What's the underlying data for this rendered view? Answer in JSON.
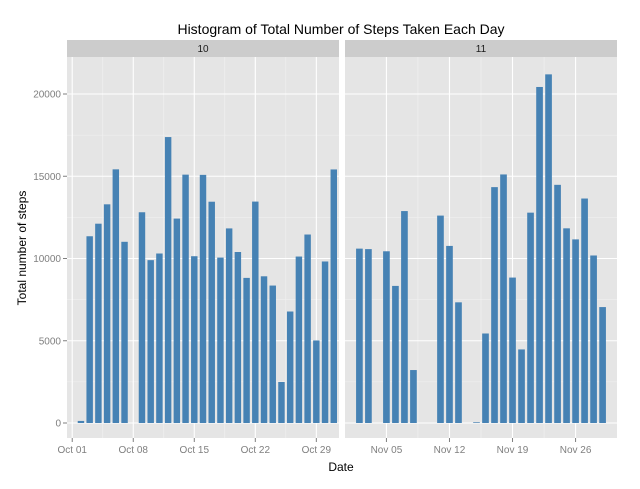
{
  "chart_data": {
    "type": "bar",
    "title": "Histogram of Total Number of Steps Taken Each Day",
    "xlabel": "Date",
    "ylabel": "Total number of steps",
    "ylim": [
      0,
      22000
    ],
    "y_ticks": [
      0,
      5000,
      10000,
      15000,
      20000
    ],
    "y_tick_labels": [
      "0",
      "5000",
      "10000",
      "15000",
      "20000"
    ],
    "color": "#4682b4",
    "grid": true,
    "facets": [
      {
        "strip_label": "10",
        "x_range": [
          0.4,
          31.6
        ],
        "x_ticks": [
          {
            "day": 1,
            "label": "Oct 01"
          },
          {
            "day": 8,
            "label": "Oct 08"
          },
          {
            "day": 15,
            "label": "Oct 15"
          },
          {
            "day": 22,
            "label": "Oct 22"
          },
          {
            "day": 29,
            "label": "Oct 29"
          }
        ],
        "values": [
          0,
          126,
          11352,
          12116,
          13294,
          15420,
          11015,
          0,
          12811,
          9900,
          10304,
          17382,
          12426,
          15098,
          10139,
          15084,
          13452,
          10056,
          11829,
          10395,
          8821,
          13460,
          8918,
          8355,
          2492,
          6778,
          10119,
          11458,
          5018,
          9819,
          15414
        ]
      },
      {
        "strip_label": "11",
        "x_range": [
          0.4,
          30.6
        ],
        "x_ticks": [
          {
            "day": 5,
            "label": "Nov 05"
          },
          {
            "day": 12,
            "label": "Nov 12"
          },
          {
            "day": 19,
            "label": "Nov 19"
          },
          {
            "day": 26,
            "label": "Nov 26"
          }
        ],
        "values": [
          0,
          10600,
          10571,
          0,
          10439,
          8334,
          12883,
          3219,
          0,
          0,
          12608,
          10765,
          7336,
          0,
          41,
          5441,
          14339,
          15110,
          8841,
          4472,
          12787,
          20427,
          21194,
          14478,
          11834,
          11162,
          13646,
          10183,
          7047,
          0
        ]
      }
    ]
  }
}
